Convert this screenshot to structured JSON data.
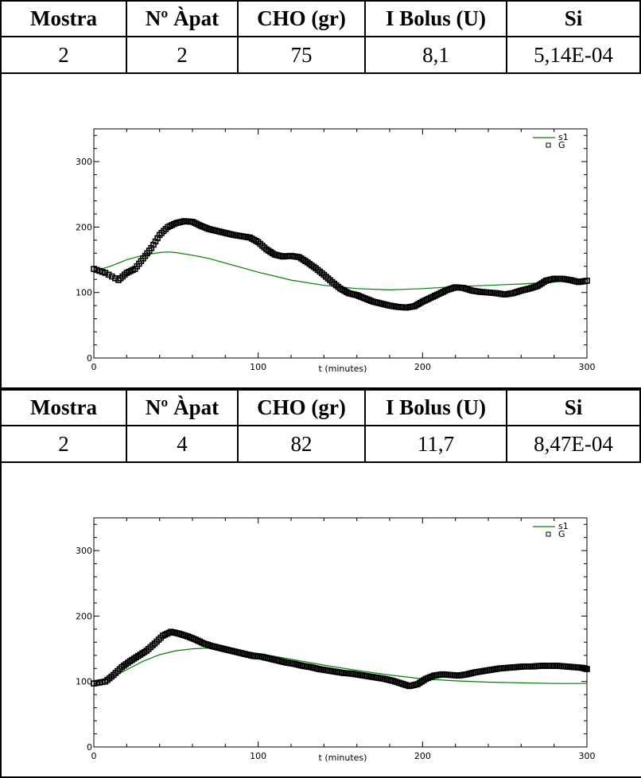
{
  "columns": [
    "Mostra",
    "Nº Àpat",
    "CHO (gr)",
    "I Bolus (U)",
    "Si"
  ],
  "rows": [
    {
      "mostra": "2",
      "apat": "2",
      "cho": "75",
      "bolus": "8,1",
      "si": "5,14E-04"
    },
    {
      "mostra": "2",
      "apat": "4",
      "cho": "82",
      "bolus": "11,7",
      "si": "8,47E-04"
    }
  ],
  "chart_data": [
    {
      "type": "line",
      "xlabel": "t (minutes)",
      "ylabel": "",
      "xlim": [
        0,
        300
      ],
      "ylim": [
        0,
        350
      ],
      "xticks": [
        "0",
        "100",
        "200",
        "300"
      ],
      "yticks": [
        "0",
        "100",
        "200",
        "300"
      ],
      "legend": "top-right",
      "series": [
        {
          "name": "s1",
          "style": "line",
          "color": "#008000",
          "x": [
            0,
            10,
            20,
            30,
            40,
            45,
            50,
            60,
            70,
            80,
            90,
            100,
            120,
            140,
            160,
            180,
            200,
            220,
            240,
            260,
            280,
            300
          ],
          "y": [
            133,
            140,
            150,
            157,
            161,
            162,
            161,
            157,
            152,
            145,
            138,
            131,
            119,
            111,
            106,
            104,
            106,
            109,
            111,
            113,
            116,
            120
          ]
        },
        {
          "name": "G",
          "style": "markers",
          "color": "#000000",
          "x": [
            0,
            7,
            15,
            20,
            25,
            30,
            35,
            40,
            45,
            50,
            55,
            60,
            65,
            70,
            75,
            80,
            85,
            90,
            95,
            100,
            105,
            110,
            115,
            120,
            125,
            130,
            135,
            140,
            145,
            150,
            155,
            160,
            165,
            170,
            175,
            180,
            185,
            190,
            195,
            200,
            205,
            210,
            215,
            220,
            225,
            230,
            235,
            240,
            245,
            250,
            255,
            260,
            265,
            270,
            275,
            280,
            285,
            290,
            295,
            300
          ],
          "y": [
            136,
            130,
            119,
            130,
            136,
            152,
            168,
            188,
            200,
            206,
            209,
            208,
            202,
            197,
            194,
            191,
            188,
            186,
            184,
            177,
            166,
            158,
            155,
            156,
            154,
            146,
            137,
            127,
            116,
            106,
            99,
            96,
            91,
            86,
            83,
            80,
            78,
            77,
            79,
            86,
            92,
            98,
            104,
            108,
            107,
            103,
            101,
            100,
            99,
            97,
            99,
            103,
            106,
            110,
            118,
            121,
            121,
            119,
            116,
            118
          ]
        }
      ]
    },
    {
      "type": "line",
      "xlabel": "t (minutes)",
      "ylabel": "",
      "xlim": [
        0,
        300
      ],
      "ylim": [
        0,
        350
      ],
      "xticks": [
        "0",
        "100",
        "200",
        "300"
      ],
      "yticks": [
        "0",
        "100",
        "200",
        "300"
      ],
      "legend": "top-right",
      "series": [
        {
          "name": "s1",
          "style": "line",
          "color": "#008000",
          "x": [
            0,
            10,
            20,
            30,
            40,
            50,
            60,
            70,
            80,
            100,
            120,
            140,
            160,
            180,
            200,
            220,
            240,
            260,
            280,
            300
          ],
          "y": [
            96,
            105,
            118,
            131,
            141,
            147,
            150,
            151,
            150,
            143,
            134,
            125,
            117,
            110,
            104,
            101,
            99,
            98,
            97,
            97
          ]
        },
        {
          "name": "G",
          "style": "markers",
          "color": "#000000",
          "x": [
            0,
            7,
            12,
            17,
            22,
            27,
            32,
            37,
            42,
            47,
            52,
            57,
            62,
            67,
            72,
            77,
            82,
            87,
            92,
            97,
            102,
            107,
            112,
            117,
            122,
            127,
            132,
            137,
            142,
            147,
            152,
            157,
            162,
            167,
            172,
            177,
            182,
            187,
            192,
            197,
            202,
            207,
            212,
            217,
            222,
            227,
            232,
            237,
            242,
            247,
            252,
            257,
            262,
            267,
            272,
            277,
            282,
            287,
            292,
            297,
            300
          ],
          "y": [
            97,
            100,
            110,
            122,
            131,
            139,
            147,
            158,
            170,
            176,
            173,
            169,
            164,
            158,
            154,
            151,
            148,
            145,
            142,
            139,
            138,
            135,
            132,
            129,
            127,
            124,
            122,
            119,
            117,
            115,
            113,
            112,
            110,
            108,
            106,
            104,
            101,
            97,
            93,
            96,
            104,
            109,
            111,
            110,
            109,
            111,
            114,
            116,
            118,
            120,
            121,
            122,
            123,
            123,
            124,
            124,
            124,
            123,
            122,
            121,
            119
          ]
        }
      ]
    }
  ]
}
